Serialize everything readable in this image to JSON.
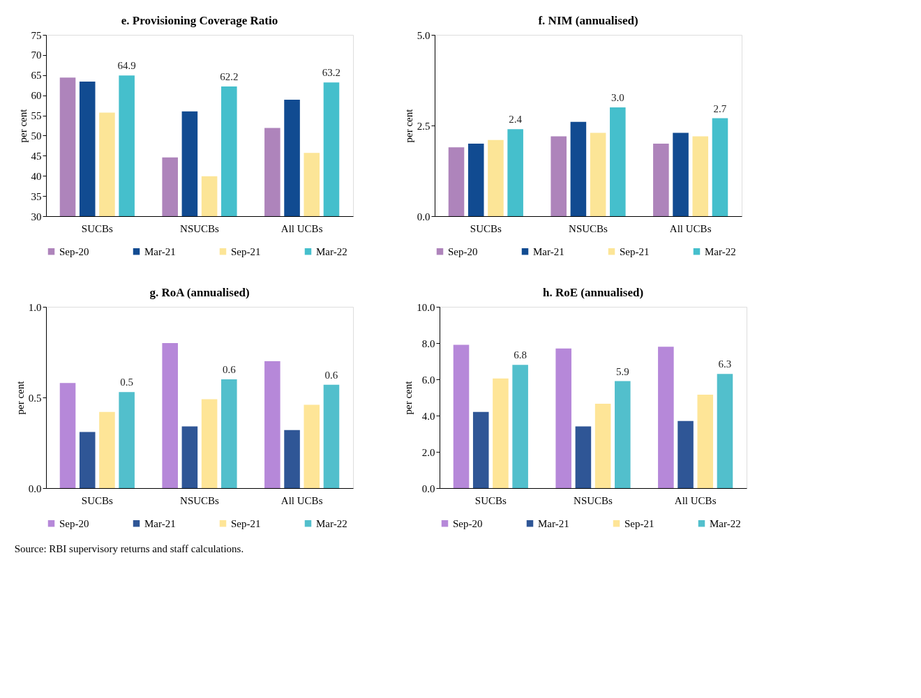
{
  "chart_data": [
    {
      "type": "bar",
      "title": "e. Provisioning Coverage Ratio",
      "ylabel": "per cent",
      "categories": [
        "SUCBs",
        "NSUCBs",
        "All UCBs"
      ],
      "ylim": [
        30,
        75
      ],
      "yticks": [
        30,
        35,
        40,
        45,
        50,
        55,
        60,
        65,
        70,
        75
      ],
      "grid": false,
      "legend": "bottom",
      "series": [
        {
          "name": "Sep-20",
          "color": "#ae84bb",
          "values": [
            64.4,
            44.6,
            51.9
          ]
        },
        {
          "name": "Mar-21",
          "color": "#114b91",
          "values": [
            63.4,
            56.0,
            58.9
          ]
        },
        {
          "name": "Sep-21",
          "color": "#fce597",
          "values": [
            55.7,
            39.9,
            45.7
          ]
        },
        {
          "name": "Mar-22",
          "color": "#45bfcc",
          "values": [
            64.9,
            62.2,
            63.2
          ],
          "value_labels": [
            "64.9",
            "62.2",
            "63.2"
          ]
        }
      ]
    },
    {
      "type": "bar",
      "title": "f. NIM (annualised)",
      "ylabel": "per cent",
      "categories": [
        "SUCBs",
        "NSUCBs",
        "All UCBs"
      ],
      "ylim": [
        0,
        5
      ],
      "yticks": [
        {
          "value": 0,
          "label": "0.0"
        },
        {
          "value": 2.5,
          "label": "2.5"
        },
        {
          "value": 5,
          "label": "5.0"
        }
      ],
      "grid": false,
      "legend": "bottom",
      "series": [
        {
          "name": "Sep-20",
          "color": "#ae84bb",
          "values": [
            1.9,
            2.2,
            2.0
          ]
        },
        {
          "name": "Mar-21",
          "color": "#114b91",
          "values": [
            2.0,
            2.6,
            2.3
          ]
        },
        {
          "name": "Sep-21",
          "color": "#fce597",
          "values": [
            2.1,
            2.3,
            2.2
          ]
        },
        {
          "name": "Mar-22",
          "color": "#45bfcc",
          "values": [
            2.4,
            3.0,
            2.7
          ],
          "value_labels": [
            "2.4",
            "3.0",
            "2.7"
          ]
        }
      ]
    },
    {
      "type": "bar",
      "title": "g. RoA (annualised)",
      "ylabel": "per cent",
      "categories": [
        "SUCBs",
        "NSUCBs",
        "All UCBs"
      ],
      "ylim": [
        0,
        1
      ],
      "yticks": [
        {
          "value": 0,
          "label": "0.0"
        },
        {
          "value": 0.5,
          "label": "0.5"
        },
        {
          "value": 1,
          "label": "1.0"
        }
      ],
      "grid": false,
      "legend": "bottom",
      "series": [
        {
          "name": "Sep-20",
          "color": "#b688d9",
          "values": [
            0.58,
            0.8,
            0.7
          ]
        },
        {
          "name": "Mar-21",
          "color": "#2f5696",
          "values": [
            0.31,
            0.34,
            0.32
          ]
        },
        {
          "name": "Sep-21",
          "color": "#fee597",
          "values": [
            0.42,
            0.49,
            0.46
          ]
        },
        {
          "name": "Mar-22",
          "color": "#52bfcc",
          "values": [
            0.53,
            0.6,
            0.57
          ],
          "value_labels": [
            "0.5",
            "0.6",
            "0.6"
          ]
        }
      ]
    },
    {
      "type": "bar",
      "title": "h. RoE (annualised)",
      "ylabel": "per cent",
      "categories": [
        "SUCBs",
        "NSUCBs",
        "All UCBs"
      ],
      "ylim": [
        0,
        10
      ],
      "yticks": [
        {
          "value": 0,
          "label": "0.0"
        },
        {
          "value": 2,
          "label": "2.0"
        },
        {
          "value": 4,
          "label": "4.0"
        },
        {
          "value": 6,
          "label": "6.0"
        },
        {
          "value": 8,
          "label": "8.0"
        },
        {
          "value": 10,
          "label": "10.0"
        }
      ],
      "grid": false,
      "legend": "bottom",
      "annotations": [
        "Source: RBI supervisory returns and staff calculations."
      ],
      "series": [
        {
          "name": "Sep-20",
          "color": "#b688d9",
          "values": [
            7.9,
            7.7,
            7.8
          ]
        },
        {
          "name": "Mar-21",
          "color": "#2f5696",
          "values": [
            4.2,
            3.4,
            3.7
          ]
        },
        {
          "name": "Sep-21",
          "color": "#fee597",
          "values": [
            6.05,
            4.65,
            5.15
          ]
        },
        {
          "name": "Mar-22",
          "color": "#52bfcc",
          "values": [
            6.8,
            5.9,
            6.3
          ],
          "value_labels": [
            "6.8",
            "5.9",
            "6.3"
          ]
        }
      ]
    }
  ]
}
